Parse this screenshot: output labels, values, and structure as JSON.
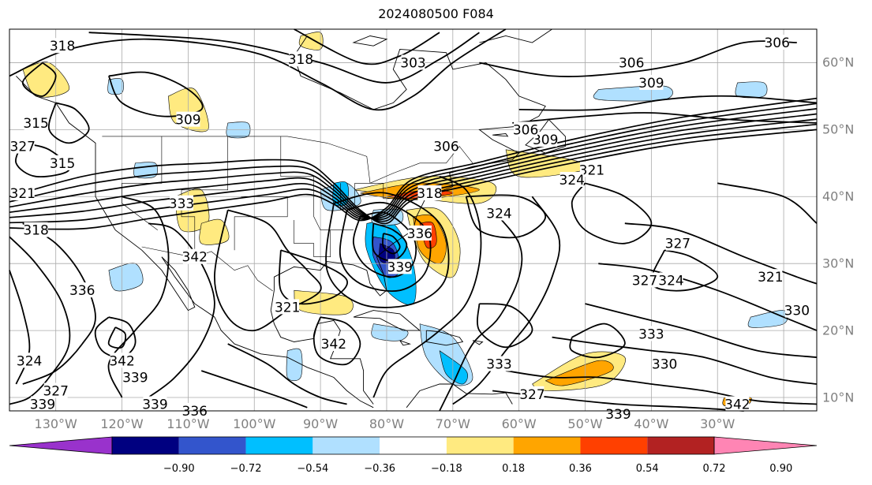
{
  "title": "2024080500 F084",
  "map": {
    "lon_range": [
      -137,
      -15
    ],
    "lat_range": [
      8,
      65
    ],
    "lon_labels": [
      "130°W",
      "120°W",
      "110°W",
      "100°W",
      "90°W",
      "80°W",
      "70°W",
      "60°W",
      "50°W",
      "40°W",
      "30°W"
    ],
    "lat_labels": [
      "60°N",
      "50°N",
      "40°N",
      "30°N",
      "20°N",
      "10°N"
    ],
    "contour_labels": [
      {
        "text": "318",
        "lon": -129,
        "lat": 62.5
      },
      {
        "text": "318",
        "lon": -93,
        "lat": 60.5
      },
      {
        "text": "303",
        "lon": -76,
        "lat": 60
      },
      {
        "text": "306",
        "lon": -43,
        "lat": 60
      },
      {
        "text": "306",
        "lon": -21,
        "lat": 63
      },
      {
        "text": "309",
        "lon": -40,
        "lat": 57
      },
      {
        "text": "309",
        "lon": -110,
        "lat": 51.5
      },
      {
        "text": "309",
        "lon": -56,
        "lat": 48.5
      },
      {
        "text": "306",
        "lon": -59,
        "lat": 50
      },
      {
        "text": "306",
        "lon": -71,
        "lat": 47.5
      },
      {
        "text": "315",
        "lon": -133,
        "lat": 51
      },
      {
        "text": "327",
        "lon": -135,
        "lat": 47.5
      },
      {
        "text": "315",
        "lon": -129,
        "lat": 45
      },
      {
        "text": "321",
        "lon": -135,
        "lat": 40.5
      },
      {
        "text": "318",
        "lon": -133,
        "lat": 35
      },
      {
        "text": "321",
        "lon": -49,
        "lat": 44
      },
      {
        "text": "324",
        "lon": -52,
        "lat": 42.5
      },
      {
        "text": "318",
        "lon": -73.5,
        "lat": 40.5
      },
      {
        "text": "333",
        "lon": -111,
        "lat": 39
      },
      {
        "text": "336",
        "lon": -75,
        "lat": 34.5
      },
      {
        "text": "342",
        "lon": -109,
        "lat": 31
      },
      {
        "text": "324",
        "lon": -63,
        "lat": 37.5
      },
      {
        "text": "339",
        "lon": -78,
        "lat": 29.5
      },
      {
        "text": "327",
        "lon": -36,
        "lat": 33
      },
      {
        "text": "327",
        "lon": -41,
        "lat": 27.5
      },
      {
        "text": "324",
        "lon": -37,
        "lat": 27.5
      },
      {
        "text": "321",
        "lon": -22,
        "lat": 28
      },
      {
        "text": "330",
        "lon": -18,
        "lat": 23
      },
      {
        "text": "336",
        "lon": -126,
        "lat": 26
      },
      {
        "text": "321",
        "lon": -95,
        "lat": 23.5
      },
      {
        "text": "342",
        "lon": -88,
        "lat": 18
      },
      {
        "text": "333",
        "lon": -40,
        "lat": 19.5
      },
      {
        "text": "342",
        "lon": -120,
        "lat": 15.5
      },
      {
        "text": "339",
        "lon": -118,
        "lat": 13
      },
      {
        "text": "324",
        "lon": -134,
        "lat": 15.5
      },
      {
        "text": "333",
        "lon": -63,
        "lat": 15
      },
      {
        "text": "330",
        "lon": -38,
        "lat": 15
      },
      {
        "text": "327",
        "lon": -130,
        "lat": 11
      },
      {
        "text": "339",
        "lon": -132,
        "lat": 9
      },
      {
        "text": "339",
        "lon": -115,
        "lat": 9
      },
      {
        "text": "336",
        "lon": -109,
        "lat": 8
      },
      {
        "text": "327",
        "lon": -58,
        "lat": 10.5
      },
      {
        "text": "339",
        "lon": -45,
        "lat": 7.5
      },
      {
        "text": "342",
        "lon": -27,
        "lat": 9
      }
    ]
  },
  "colorbar": {
    "ticks": [
      "−0.90",
      "−0.72",
      "−0.54",
      "−0.36",
      "−0.18",
      "0.18",
      "0.36",
      "0.54",
      "0.72",
      "0.90"
    ],
    "colors": [
      "#9932cc",
      "#000080",
      "#3355cc",
      "#00bfff",
      "#b0e0ff",
      "#ffffff",
      "#ffea80",
      "#ffa500",
      "#ff4000",
      "#b22222",
      "#ff85b4"
    ]
  }
}
